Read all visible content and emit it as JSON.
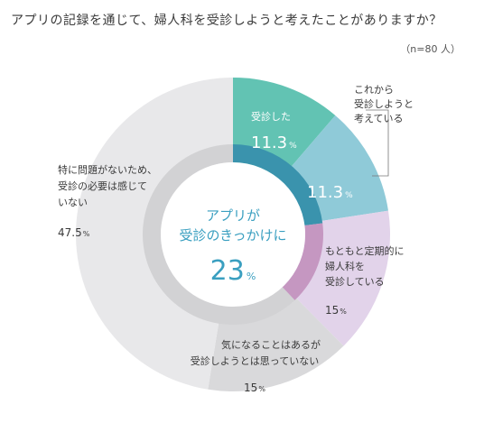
{
  "title": "アプリの記録を通じて、婦人科を受診しようと考えたことがありますか？",
  "sample": "（n=80 人）",
  "center": {
    "line1": "アプリが",
    "line2": "受診のきっかけに",
    "value": "23",
    "unit": "%"
  },
  "chart_data": {
    "type": "pie",
    "title": "アプリの記録を通じて、婦人科を受診しようと考えたことがありますか？",
    "slices": [
      {
        "label": "受診した",
        "value": 11.3,
        "color": "#62c3b3"
      },
      {
        "label": "これから受診しようと考えている",
        "value": 11.3,
        "color": "#8fcad8"
      },
      {
        "label": "もともと定期的に婦人科を受診している",
        "value": 15,
        "color": "#e2d3ea"
      },
      {
        "label": "気になることはあるが受診しようとは思っていない",
        "value": 15,
        "color": "#d9d9db"
      },
      {
        "label": "特に問題がないため、受診の必要は感じていない",
        "value": 47.5,
        "color": "#e8e8ea"
      }
    ],
    "inner_ring": [
      {
        "value": 23,
        "color": "#3a93ad"
      },
      {
        "value": 15,
        "color": "#c597c1"
      },
      {
        "value": 62,
        "color": "#d2d2d4"
      }
    ]
  },
  "labels": {
    "s1_line1": "受診した",
    "s1_value": "11.3",
    "s2_line1": "これから",
    "s2_line2": "受診しようと",
    "s2_line3": "考えている",
    "s2_value": "11.3",
    "s3_line1": "もともと定期的に",
    "s3_line2": "婦人科を",
    "s3_line3": "受診している",
    "s3_value": "15",
    "s4_line1": "気になることはあるが",
    "s4_line2": "受診しようとは思っていない",
    "s4_value": "15",
    "s5_line1": "特に問題がないため、",
    "s5_line2": "受診の必要は感じて",
    "s5_line3": "いない",
    "s5_value": "47.5",
    "unit": "%"
  }
}
